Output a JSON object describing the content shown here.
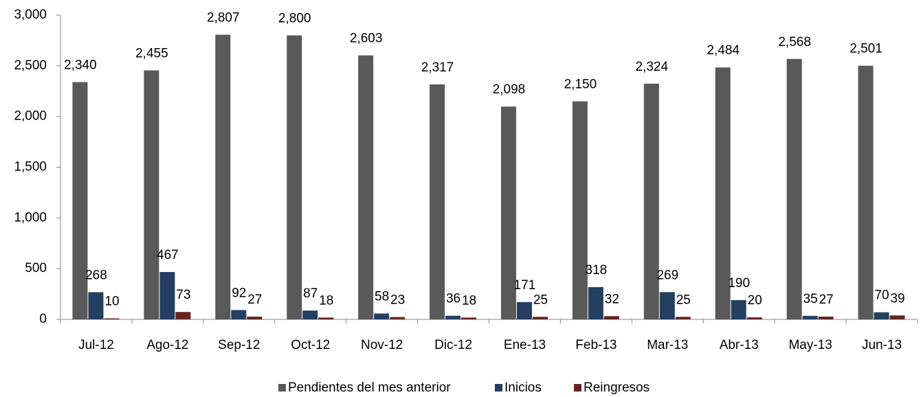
{
  "chart_data": {
    "type": "bar",
    "categories": [
      "Jul-12",
      "Ago-12",
      "Sep-12",
      "Oct-12",
      "Nov-12",
      "Dic-12",
      "Ene-13",
      "Feb-13",
      "Mar-13",
      "Abr-13",
      "May-13",
      "Jun-13"
    ],
    "series": [
      {
        "name": "Pendientes del mes anterior",
        "color": "#595959",
        "values": [
          2340,
          2455,
          2807,
          2800,
          2603,
          2317,
          2098,
          2150,
          2324,
          2484,
          2568,
          2501
        ],
        "value_labels": [
          "2,340",
          "2,455",
          "2,807",
          "2,800",
          "2,603",
          "2,317",
          "2,098",
          "2,150",
          "2,324",
          "2,484",
          "2,568",
          "2,501"
        ]
      },
      {
        "name": "Inicios",
        "color": "#243f60",
        "values": [
          268,
          467,
          92,
          87,
          58,
          36,
          171,
          318,
          269,
          190,
          35,
          70
        ]
      },
      {
        "name": "Reingresos",
        "color": "#632523",
        "values": [
          10,
          73,
          27,
          18,
          23,
          18,
          25,
          32,
          25,
          20,
          27,
          39
        ]
      }
    ],
    "ylim": [
      0,
      3000
    ],
    "yticks": [
      0,
      500,
      {
        "value": 1000,
        "label": "1,000"
      },
      {
        "value": 1500,
        "label": "1,500"
      },
      {
        "value": 2000,
        "label": "2,000"
      },
      {
        "value": 2500,
        "label": "2,500"
      },
      {
        "value": 3000,
        "label": "3,000"
      }
    ],
    "legend": "bottom"
  }
}
